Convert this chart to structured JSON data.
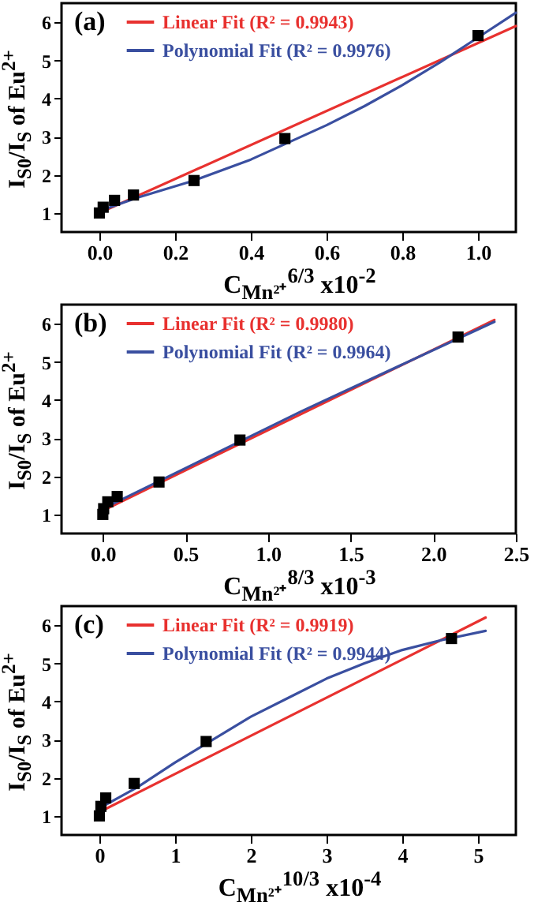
{
  "chart_data": [
    {
      "type": "scatter",
      "title": "(a)",
      "xlabel": "C$_{Mn²⁺}$$^{6/3}$ x10$^{-2}$",
      "ylabel": "I$_{S0}$/I$_{S}$ of Eu$^{2+}$",
      "line_style": "solid",
      "legend": "top left",
      "grid": false,
      "xlim": [
        -0.1,
        1.1
      ],
      "ylim": [
        0.5,
        6.5
      ],
      "xticks": [
        {
          "value": 0,
          "label": "0.0"
        },
        0.2,
        0.4,
        0.6,
        0.8,
        {
          "value": 1,
          "label": "1.0"
        }
      ],
      "yticks": [
        1,
        2,
        3,
        4,
        5,
        6
      ],
      "series": [
        {
          "color": "#000000",
          "marker": "square",
          "x": [
            0,
            0.01,
            0.04,
            0.09,
            0.25,
            0.49,
            1.0
          ],
          "values": [
            1.0,
            1.15,
            1.33,
            1.47,
            1.85,
            2.95,
            5.65
          ]
        },
        {
          "type": "line",
          "name": "Linear Fit (R² = 0.9943)",
          "color": "#e8312f",
          "x": [
            0,
            1.1
          ],
          "values": [
            1.0,
            5.9
          ]
        },
        {
          "type": "line",
          "name": "Polynomial Fit (R² = 0.9976)",
          "color": "#3a4fa0",
          "x": [
            0,
            0.1,
            0.25,
            0.4,
            0.5,
            0.6,
            0.7,
            0.8,
            0.9,
            1.0,
            1.1
          ],
          "values": [
            1.05,
            1.4,
            1.85,
            2.4,
            2.85,
            3.3,
            3.8,
            4.35,
            4.95,
            5.6,
            6.25
          ]
        }
      ]
    },
    {
      "type": "scatter",
      "title": "(b)",
      "xlabel": "C$_{Mn²⁺}$$^{8/3}$ x10$^{-3}$",
      "ylabel": "I$_{S0}$/I$_{S}$ of Eu$^{2+}$",
      "line_style": "solid",
      "legend": "top left",
      "grid": false,
      "xlim": [
        -0.25,
        2.5
      ],
      "ylim": [
        0.5,
        6.5
      ],
      "xticks": [
        {
          "value": 0,
          "label": "0.0"
        },
        0.5,
        {
          "value": 1,
          "label": "1.0"
        },
        1.5,
        {
          "value": 2,
          "label": "2.0"
        },
        2.5
      ],
      "yticks": [
        1,
        2,
        3,
        4,
        5,
        6
      ],
      "series": [
        {
          "color": "#000000",
          "marker": "square",
          "x": [
            0,
            0.005,
            0.03,
            0.087,
            0.34,
            0.83,
            2.15
          ],
          "values": [
            1.0,
            1.15,
            1.33,
            1.47,
            1.85,
            2.95,
            5.65
          ]
        },
        {
          "type": "line",
          "name": "Linear Fit (R² = 0.9980)",
          "color": "#e8312f",
          "x": [
            0,
            2.37
          ],
          "values": [
            1.1,
            6.1
          ]
        },
        {
          "type": "line",
          "name": "Polynomial Fit (R² = 0.9964)",
          "color": "#3a4fa0",
          "x": [
            0,
            1.2,
            2.37
          ],
          "values": [
            1.15,
            3.7,
            6.05
          ]
        }
      ]
    },
    {
      "type": "scatter",
      "title": "(c)",
      "xlabel": "C$_{Mn²⁺}$$^{10/3}$ x10$^{-4}$",
      "ylabel": "I$_{S0}$/I$_{S}$ of Eu$^{2+}$",
      "line_style": "solid",
      "legend": "top left",
      "grid": false,
      "xlim": [
        -0.5,
        5.5
      ],
      "ylim": [
        0.5,
        6.5
      ],
      "xticks": [
        0,
        1,
        2,
        3,
        4,
        5
      ],
      "yticks": [
        1,
        2,
        3,
        4,
        5,
        6
      ],
      "series": [
        {
          "color": "#000000",
          "marker": "square",
          "x": [
            0,
            0.02,
            0.084,
            0.46,
            1.41,
            4.65
          ],
          "values": [
            1.0,
            1.25,
            1.47,
            1.85,
            2.95,
            5.65
          ]
        },
        {
          "type": "line",
          "name": "Linear Fit (R² = 0.9919)",
          "color": "#e8312f",
          "x": [
            0,
            5.1
          ],
          "values": [
            1.1,
            6.2
          ]
        },
        {
          "type": "line",
          "name": "Polynomial Fit (R² = 0.9944)",
          "color": "#3a4fa0",
          "x": [
            0,
            0.5,
            1,
            1.5,
            2,
            2.5,
            3,
            3.5,
            4,
            4.5,
            5.1
          ],
          "values": [
            1.2,
            1.75,
            2.4,
            3.0,
            3.6,
            4.1,
            4.6,
            5.0,
            5.35,
            5.6,
            5.85
          ]
        }
      ]
    }
  ]
}
